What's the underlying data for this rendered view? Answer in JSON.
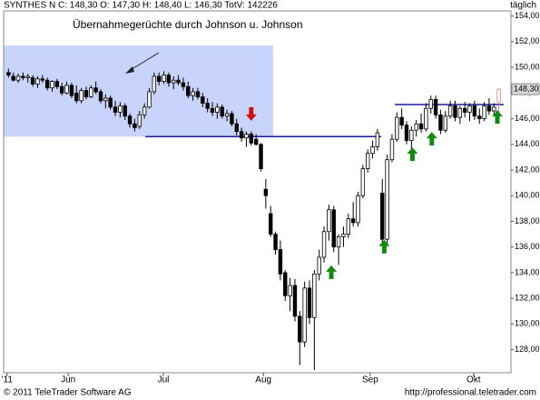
{
  "chart_data": {
    "type": "candlestick",
    "title": "SYNTHES N C: 148,30 O: 147,30 H: 148,40 L: 146,30 TotV: 142226",
    "period": "täglich",
    "annotation": "Übernahmegerüchte durch Johnson u. Johnson",
    "footer_left": "© 2011 TeleTrader Software AG",
    "footer_right": "http://professional.teletrader.com",
    "last_price": {
      "value": 148.3,
      "label": "148,30"
    },
    "up_color": "#ffffff",
    "down_color": "#000000",
    "last_color": "#e08080",
    "x": [
      0,
      1,
      2,
      3,
      4,
      5,
      6,
      7,
      8,
      9,
      10,
      11,
      12,
      13,
      14,
      15,
      16,
      17,
      18,
      19,
      20,
      21,
      22,
      23,
      24,
      25,
      26,
      27,
      28,
      29,
      30,
      31,
      32,
      33,
      34,
      35,
      36,
      37,
      38,
      39,
      40,
      41,
      42,
      43,
      44,
      45,
      46,
      47,
      48,
      49,
      50,
      51,
      52,
      53,
      54,
      55,
      56,
      57,
      58,
      59,
      60,
      61,
      62,
      63,
      64,
      65,
      66,
      67,
      68,
      69,
      70,
      71,
      72,
      73,
      74,
      75,
      76,
      77,
      78,
      79,
      80,
      81,
      82,
      83,
      84,
      85,
      86,
      87,
      88,
      89,
      90,
      91,
      92,
      93,
      94,
      95,
      96,
      97,
      98,
      99,
      100,
      101
    ],
    "open": [
      149.6,
      149.3,
      149.0,
      149.3,
      149.2,
      149.2,
      148.7,
      149.1,
      149.0,
      148.4,
      148.9,
      148.5,
      148.0,
      148.6,
      148.0,
      147.4,
      148.2,
      147.7,
      148.4,
      148.1,
      147.4,
      147.6,
      146.9,
      146.5,
      147.0,
      146.2,
      145.6,
      145.4,
      146.3,
      146.9,
      148.1,
      149.3,
      148.9,
      149.4,
      148.8,
      149.0,
      148.8,
      148.5,
      147.8,
      148.1,
      147.7,
      147.2,
      146.8,
      146.5,
      146.9,
      146.2,
      146.4,
      145.6,
      145.0,
      144.5,
      144.8,
      144.4,
      144.0,
      140.5,
      138.6,
      137.0,
      135.8,
      134.0,
      132.2,
      133.0,
      130.6,
      128.6,
      132.8,
      130.5,
      133.9,
      135.2,
      137.2,
      138.9,
      136.0,
      136.8,
      137.0,
      138.2,
      137.9,
      140.0,
      142.1,
      143.3,
      143.8,
      140.2,
      136.6,
      142.8,
      144.4,
      146.1,
      145.5,
      144.3,
      145.1,
      145.6,
      145.2,
      146.8,
      147.5,
      146.3,
      145.1,
      146.2,
      147.0,
      146.1,
      146.8,
      146.5,
      147.0,
      146.2,
      146.0,
      147.0,
      146.6,
      147.3
    ],
    "high": [
      149.9,
      149.6,
      149.5,
      149.6,
      149.5,
      149.4,
      149.3,
      149.4,
      149.2,
      149.0,
      149.1,
      148.8,
      148.9,
      148.8,
      148.6,
      148.4,
      148.5,
      148.6,
      148.9,
      148.3,
      147.9,
      147.8,
      147.4,
      147.3,
      147.2,
      146.4,
      146.0,
      146.6,
      147.2,
      148.4,
      149.6,
      149.6,
      149.7,
      149.6,
      149.3,
      149.4,
      149.2,
      148.9,
      148.4,
      148.4,
      148.0,
      147.6,
      147.3,
      147.2,
      147.1,
      146.7,
      146.6,
      146.0,
      145.3,
      145.0,
      145.0,
      144.8,
      144.1,
      141.3,
      139.2,
      137.2,
      136.5,
      134.2,
      133.6,
      133.5,
      131.0,
      133.3,
      133.4,
      134.2,
      135.8,
      137.6,
      139.3,
      139.2,
      137.0,
      137.6,
      138.6,
      139.5,
      140.3,
      142.4,
      143.6,
      144.3,
      145.2,
      141.3,
      143.2,
      144.8,
      146.5,
      146.8,
      145.8,
      145.4,
      145.9,
      146.4,
      147.2,
      147.8,
      147.8,
      146.7,
      146.6,
      147.4,
      147.4,
      147.0,
      147.3,
      147.2,
      147.4,
      146.8,
      147.3,
      147.6,
      147.2,
      148.4
    ],
    "low": [
      149.2,
      148.9,
      148.8,
      149.0,
      148.8,
      148.5,
      148.4,
      148.8,
      148.2,
      148.1,
      148.3,
      147.8,
      147.9,
      147.6,
      147.2,
      147.2,
      147.5,
      147.6,
      147.9,
      147.2,
      146.8,
      146.7,
      146.2,
      146.1,
      145.9,
      145.3,
      145.0,
      145.2,
      146.0,
      146.8,
      147.9,
      148.6,
      148.7,
      148.5,
      148.3,
      148.6,
      148.2,
      147.6,
      147.4,
      147.5,
      146.9,
      146.5,
      146.2,
      146.0,
      146.0,
      145.8,
      145.4,
      144.7,
      144.2,
      143.8,
      143.9,
      143.9,
      141.9,
      139.0,
      136.8,
      135.4,
      133.4,
      131.8,
      131.0,
      130.2,
      126.8,
      128.2,
      130.0,
      126.4,
      133.4,
      134.8,
      136.5,
      135.6,
      134.6,
      136.0,
      136.7,
      137.6,
      137.6,
      139.8,
      141.8,
      142.9,
      143.5,
      136.2,
      136.3,
      142.6,
      144.2,
      145.2,
      144.0,
      143.6,
      144.6,
      144.9,
      145.0,
      146.4,
      146.0,
      144.8,
      144.9,
      146.0,
      145.8,
      145.6,
      146.1,
      145.8,
      145.9,
      145.6,
      145.8,
      146.3,
      146.3,
      146.3
    ],
    "close": [
      149.4,
      149.0,
      149.3,
      149.2,
      149.3,
      148.7,
      149.1,
      149.0,
      148.4,
      148.9,
      148.5,
      148.0,
      148.6,
      147.8,
      147.4,
      148.2,
      147.7,
      148.4,
      148.1,
      147.4,
      147.6,
      146.9,
      146.5,
      147.0,
      146.2,
      145.6,
      145.3,
      146.3,
      146.9,
      148.1,
      149.3,
      148.9,
      149.4,
      148.8,
      149.0,
      148.8,
      148.5,
      147.8,
      148.1,
      147.7,
      147.2,
      146.8,
      146.5,
      146.9,
      146.2,
      146.4,
      145.6,
      145.0,
      144.5,
      144.8,
      144.1,
      144.0,
      142.1,
      140.0,
      137.0,
      135.8,
      133.9,
      132.2,
      133.0,
      130.6,
      128.6,
      132.8,
      130.5,
      133.9,
      135.2,
      137.2,
      138.9,
      136.0,
      136.8,
      137.0,
      138.2,
      137.9,
      140.0,
      142.1,
      143.3,
      143.8,
      144.9,
      136.6,
      142.8,
      144.4,
      146.1,
      145.5,
      144.3,
      145.1,
      145.6,
      145.2,
      146.8,
      147.5,
      146.3,
      145.1,
      146.2,
      147.0,
      146.1,
      146.8,
      146.5,
      147.0,
      146.2,
      146.0,
      147.0,
      146.6,
      146.9,
      148.3
    ],
    "xlim": [
      -1,
      103.5
    ],
    "xticks": [
      {
        "value": -0.3,
        "label": "'11"
      },
      {
        "value": 12.3,
        "label": "Jun"
      },
      {
        "value": 31.9,
        "label": "Jul"
      },
      {
        "value": 52.5,
        "label": "Aug"
      },
      {
        "value": 74.5,
        "label": "Sep"
      },
      {
        "value": 95.8,
        "label": "Okt"
      }
    ],
    "ylim": [
      126.2,
      154.4
    ],
    "yticks": [
      {
        "value": 128,
        "label": "128,00"
      },
      {
        "value": 130,
        "label": "130,00"
      },
      {
        "value": 132,
        "label": "132,00"
      },
      {
        "value": 134,
        "label": "134,00"
      },
      {
        "value": 136,
        "label": "136,00"
      },
      {
        "value": 138,
        "label": "138,00"
      },
      {
        "value": 140,
        "label": "140,00"
      },
      {
        "value": 142,
        "label": "142,00"
      },
      {
        "value": 144,
        "label": "144,00"
      },
      {
        "value": 146,
        "label": "146,00"
      },
      {
        "value": 148,
        "label": "148,00"
      },
      {
        "value": 150,
        "label": "150,00"
      },
      {
        "value": 152,
        "label": "152,00"
      },
      {
        "value": 154,
        "label": "154,00"
      }
    ],
    "highlight": {
      "x": [
        -1,
        54.5
      ],
      "y": [
        144.6,
        151.7
      ],
      "color": "#c8d4fb"
    },
    "levels": [
      {
        "value": 144.6,
        "x": [
          28.2,
          76.8
        ],
        "color": "#1a1aa0"
      },
      {
        "value": 147.1,
        "x": [
          79.6,
          102
        ],
        "color": "#1a1aa0"
      }
    ],
    "markers": [
      {
        "x": 50,
        "y": 146.4,
        "direction": "down",
        "color": "#d01010"
      },
      {
        "x": 66.5,
        "y": 134.0,
        "direction": "up",
        "color": "#108a10"
      },
      {
        "x": 77.4,
        "y": 136.0,
        "direction": "up",
        "color": "#108a10"
      },
      {
        "x": 83.2,
        "y": 143.2,
        "direction": "up",
        "color": "#108a10"
      },
      {
        "x": 87.2,
        "y": 144.4,
        "direction": "up",
        "color": "#108a10"
      },
      {
        "x": 100.7,
        "y": 146.1,
        "direction": "up",
        "color": "#108a10"
      }
    ]
  }
}
